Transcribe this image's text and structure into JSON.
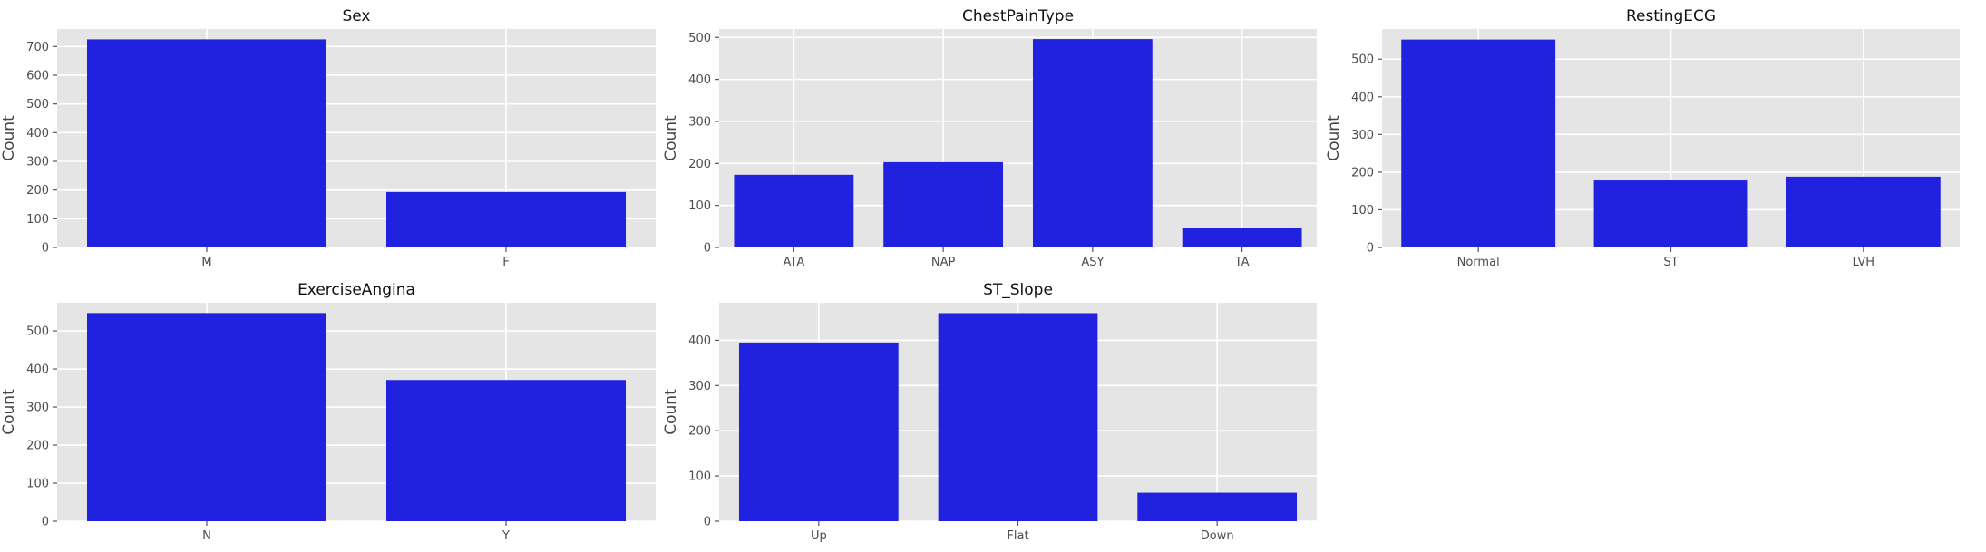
{
  "figure": {
    "bar_color": "#2121e0",
    "background_color": "#e5e5e5"
  },
  "chart_data": [
    {
      "type": "bar",
      "title": "Sex",
      "xlabel": "",
      "ylabel": "Count",
      "categories": [
        "M",
        "F"
      ],
      "values": [
        725,
        193
      ],
      "yticks": [
        0,
        100,
        200,
        300,
        400,
        500,
        600,
        700
      ],
      "ylim": [
        0,
        761
      ],
      "grid": true
    },
    {
      "type": "bar",
      "title": "ChestPainType",
      "xlabel": "",
      "ylabel": "Count",
      "categories": [
        "ATA",
        "NAP",
        "ASY",
        "TA"
      ],
      "values": [
        173,
        203,
        496,
        46
      ],
      "yticks": [
        0,
        100,
        200,
        300,
        400,
        500
      ],
      "ylim": [
        0,
        520
      ],
      "grid": true
    },
    {
      "type": "bar",
      "title": "RestingECG",
      "xlabel": "",
      "ylabel": "Count",
      "categories": [
        "Normal",
        "ST",
        "LVH"
      ],
      "values": [
        552,
        178,
        188
      ],
      "yticks": [
        0,
        100,
        200,
        300,
        400,
        500
      ],
      "ylim": [
        0,
        580
      ],
      "grid": true
    },
    {
      "type": "bar",
      "title": "ExerciseAngina",
      "xlabel": "",
      "ylabel": "Count",
      "categories": [
        "N",
        "Y"
      ],
      "values": [
        547,
        371
      ],
      "yticks": [
        0,
        100,
        200,
        300,
        400,
        500
      ],
      "ylim": [
        0,
        574
      ],
      "grid": true
    },
    {
      "type": "bar",
      "title": "ST_Slope",
      "xlabel": "",
      "ylabel": "Count",
      "categories": [
        "Up",
        "Flat",
        "Down"
      ],
      "values": [
        395,
        460,
        63
      ],
      "yticks": [
        0,
        100,
        200,
        300,
        400
      ],
      "ylim": [
        0,
        483
      ],
      "grid": true
    }
  ]
}
